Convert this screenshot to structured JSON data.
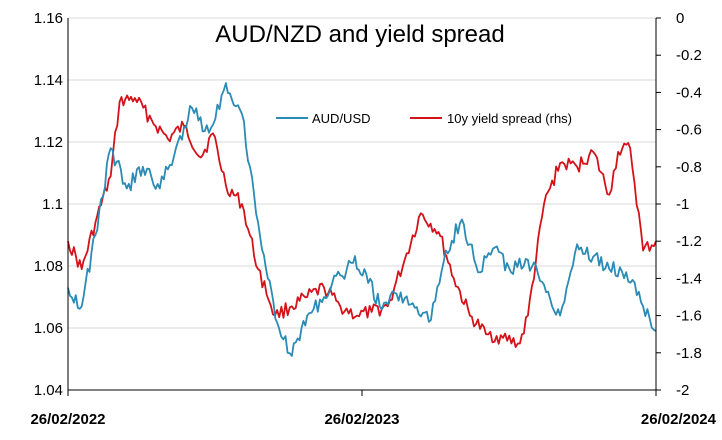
{
  "chart_data": {
    "type": "line",
    "title": "AUD/NZD and yield spread",
    "x_ticks": [
      "26/02/2022",
      "26/02/2023",
      "26/02/2024"
    ],
    "x_range": [
      "2022-02-26",
      "2024-02-26"
    ],
    "y_left": {
      "lim": [
        1.04,
        1.16
      ],
      "ticks": [
        "1.04",
        "1.06",
        "1.08",
        "1.1",
        "1.12",
        "1.14",
        "1.16"
      ]
    },
    "y_right": {
      "lim": [
        -2,
        0
      ],
      "ticks": [
        "-2",
        "-1.8",
        "-1.6",
        "-1.4",
        "-1.2",
        "-1",
        "-0.8",
        "-0.6",
        "-0.4",
        "-0.2",
        "0"
      ]
    },
    "grid": "horizontal",
    "legend_position": "top-right",
    "colors": {
      "aud_usd": "#2a8bb5",
      "spread": "#d4121a",
      "grid": "#d9d9d9",
      "axis": "#000000"
    },
    "series": [
      {
        "name": "AUD/USD",
        "axis": "left",
        "x": [
          "2022-02-26",
          "2022-03-15",
          "2022-04-01",
          "2022-04-20",
          "2022-05-10",
          "2022-05-30",
          "2022-06-20",
          "2022-07-10",
          "2022-07-30",
          "2022-08-20",
          "2022-09-10",
          "2022-09-30",
          "2022-10-10",
          "2022-10-20",
          "2022-11-01",
          "2022-11-15",
          "2022-12-01",
          "2022-12-20",
          "2023-01-10",
          "2023-01-30",
          "2023-02-15",
          "2023-03-01",
          "2023-03-20",
          "2023-04-10",
          "2023-04-30",
          "2023-05-20",
          "2023-06-10",
          "2023-06-30",
          "2023-07-20",
          "2023-08-10",
          "2023-08-30",
          "2023-09-20",
          "2023-10-10",
          "2023-10-30",
          "2023-11-20",
          "2023-12-10",
          "2023-12-30",
          "2024-01-20",
          "2024-02-10",
          "2024-02-26"
        ],
        "values": [
          1.073,
          1.067,
          1.09,
          1.118,
          1.105,
          1.112,
          1.105,
          1.118,
          1.131,
          1.123,
          1.139,
          1.129,
          1.112,
          1.094,
          1.076,
          1.06,
          1.051,
          1.064,
          1.07,
          1.077,
          1.081,
          1.079,
          1.067,
          1.071,
          1.068,
          1.062,
          1.085,
          1.095,
          1.078,
          1.086,
          1.078,
          1.082,
          1.074,
          1.064,
          1.087,
          1.083,
          1.079,
          1.078,
          1.067,
          1.059
        ]
      },
      {
        "name": "10y yield spread (rhs)",
        "axis": "right",
        "x": [
          "2022-02-26",
          "2022-03-15",
          "2022-04-01",
          "2022-04-20",
          "2022-05-01",
          "2022-05-20",
          "2022-06-10",
          "2022-06-30",
          "2022-07-20",
          "2022-08-10",
          "2022-08-25",
          "2022-09-10",
          "2022-09-30",
          "2022-10-20",
          "2022-11-10",
          "2022-12-01",
          "2022-12-20",
          "2023-01-10",
          "2023-01-30",
          "2023-02-20",
          "2023-03-10",
          "2023-03-30",
          "2023-04-20",
          "2023-05-10",
          "2023-06-01",
          "2023-06-20",
          "2023-07-10",
          "2023-07-30",
          "2023-08-20",
          "2023-09-10",
          "2023-09-20",
          "2023-10-10",
          "2023-10-30",
          "2023-11-20",
          "2023-12-10",
          "2023-12-30",
          "2024-01-10",
          "2024-01-25",
          "2024-02-10",
          "2024-02-26"
        ],
        "values": [
          -1.2,
          -1.35,
          -1.1,
          -0.85,
          -0.45,
          -0.43,
          -0.55,
          -0.65,
          -0.58,
          -0.75,
          -0.62,
          -0.9,
          -1.0,
          -1.35,
          -1.6,
          -1.55,
          -1.5,
          -1.45,
          -1.55,
          -1.6,
          -1.58,
          -1.55,
          -1.3,
          -1.05,
          -1.15,
          -1.4,
          -1.6,
          -1.7,
          -1.72,
          -1.75,
          -1.6,
          -1.0,
          -0.78,
          -0.8,
          -0.72,
          -0.95,
          -0.72,
          -0.7,
          -1.25,
          -1.2
        ]
      }
    ]
  }
}
